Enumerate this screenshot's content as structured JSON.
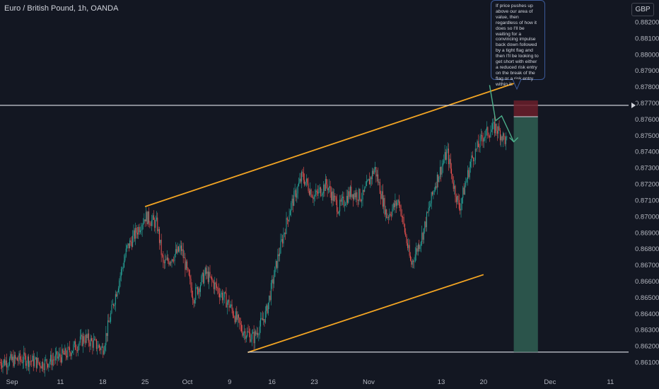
{
  "header": {
    "title": "Euro / British Pound, 1h, OANDA",
    "currency_badge": "GBP"
  },
  "annotation": {
    "text": "If price pushes up above our area of value, then regardless of how it does so I'll be waiting for a convincing impulse back down followed by a tight flag and then I'll be looking to get short with either a reduced risk entry on the break of the flag or a risk entry within it."
  },
  "colors": {
    "background": "#131722",
    "up_candle": "#26a69a",
    "down_candle": "#ef5350",
    "trendline": "#f5a623",
    "level_line": "#e0e3eb",
    "axis_text": "#b2b5be",
    "stop_zone": "#6b1f2a",
    "target_zone": "#2f5b50",
    "arrow": "#4caf8a"
  },
  "chart_data": {
    "type": "candlestick",
    "title": "Euro / British Pound, 1h, OANDA",
    "ylabel": "GBP",
    "ylim": [
      0.8605,
      0.8832
    ],
    "y_ticks": [
      "0.88200",
      "0.88100",
      "0.88000",
      "0.87900",
      "0.87800",
      "0.87700",
      "0.87600",
      "0.87500",
      "0.87400",
      "0.87300",
      "0.87200",
      "0.87100",
      "0.87000",
      "0.86900",
      "0.86800",
      "0.86700",
      "0.86600",
      "0.86500",
      "0.86400",
      "0.86300",
      "0.86200",
      "0.86100"
    ],
    "x_ticks": [
      "Sep",
      "11",
      "18",
      "25",
      "Oct",
      "9",
      "16",
      "23",
      "Nov",
      "13",
      "20",
      "Dec",
      "11"
    ],
    "x_range": [
      "2023-09-01",
      "2023-12-14"
    ],
    "price_path": [
      [
        "2023-09-01",
        0.861
      ],
      [
        "2023-09-05",
        0.8612
      ],
      [
        "2023-09-08",
        0.8609
      ],
      [
        "2023-09-12",
        0.8615
      ],
      [
        "2023-09-15",
        0.8625
      ],
      [
        "2023-09-18",
        0.8618
      ],
      [
        "2023-09-20",
        0.865
      ],
      [
        "2023-09-22",
        0.868
      ],
      [
        "2023-09-25",
        0.87
      ],
      [
        "2023-09-27",
        0.8695
      ],
      [
        "2023-09-28",
        0.867
      ],
      [
        "2023-10-01",
        0.868
      ],
      [
        "2023-10-03",
        0.865
      ],
      [
        "2023-10-05",
        0.8665
      ],
      [
        "2023-10-07",
        0.8655
      ],
      [
        "2023-10-09",
        0.8645
      ],
      [
        "2023-10-11",
        0.863
      ],
      [
        "2023-10-13",
        0.8625
      ],
      [
        "2023-10-15",
        0.864
      ],
      [
        "2023-10-17",
        0.8675
      ],
      [
        "2023-10-19",
        0.8705
      ],
      [
        "2023-10-21",
        0.8725
      ],
      [
        "2023-10-23",
        0.8712
      ],
      [
        "2023-10-25",
        0.872
      ],
      [
        "2023-10-27",
        0.8705
      ],
      [
        "2023-10-29",
        0.8715
      ],
      [
        "2023-10-31",
        0.8712
      ],
      [
        "2023-11-02",
        0.873
      ],
      [
        "2023-11-04",
        0.87
      ],
      [
        "2023-11-06",
        0.871
      ],
      [
        "2023-11-08",
        0.867
      ],
      [
        "2023-11-10",
        0.869
      ],
      [
        "2023-11-12",
        0.872
      ],
      [
        "2023-11-14",
        0.874
      ],
      [
        "2023-11-15",
        0.872
      ],
      [
        "2023-11-16",
        0.8705
      ],
      [
        "2023-11-18",
        0.8735
      ],
      [
        "2023-11-20",
        0.875
      ],
      [
        "2023-11-22",
        0.8755
      ],
      [
        "2023-11-24",
        0.8745
      ]
    ],
    "lines": [
      {
        "name": "upper-channel",
        "from": [
          "2023-09-25",
          0.8706
        ],
        "to": [
          "2023-11-25",
          0.8782
        ]
      },
      {
        "name": "lower-channel",
        "from": [
          "2023-10-12",
          0.8616
        ],
        "to": [
          "2023-11-20",
          0.8664
        ]
      },
      {
        "name": "resistance-level",
        "from": [
          "2023-09-01",
          0.87685
        ],
        "to": [
          "2023-12-14",
          0.87685
        ]
      },
      {
        "name": "support-level",
        "from": [
          "2023-10-12",
          0.86162
        ],
        "to": [
          "2023-12-14",
          0.86162
        ]
      }
    ],
    "short_position": {
      "start": "2023-11-25",
      "end": "2023-11-29",
      "entry": 0.87615,
      "stop": 0.87715,
      "target": 0.86162
    },
    "projection_arrow": [
      [
        "2023-11-21",
        0.8781
      ],
      [
        "2023-11-22",
        0.8759
      ],
      [
        "2023-11-23",
        0.8762
      ],
      [
        "2023-11-25",
        0.8746
      ]
    ],
    "grid": false
  }
}
